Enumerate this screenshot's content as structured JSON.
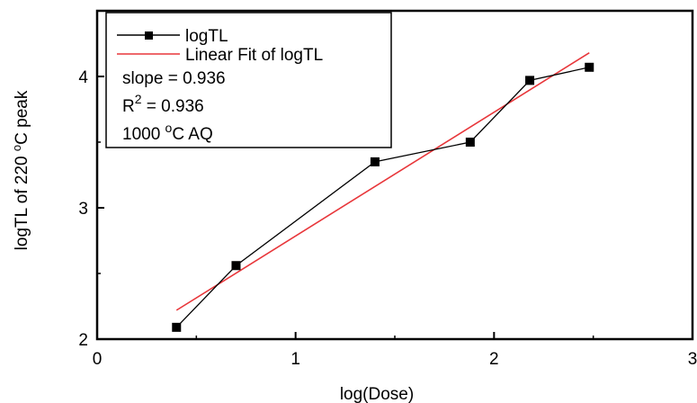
{
  "chart_data": {
    "type": "line",
    "xlabel": "log(Dose)",
    "ylabel_parts": [
      "logTL of 220 ",
      "o",
      "C peak"
    ],
    "xlim": [
      0,
      3
    ],
    "ylim": [
      2,
      4.5
    ],
    "x_ticks": [
      0,
      1,
      2,
      3
    ],
    "x_tick_labels": [
      "0",
      "1",
      "2",
      "3"
    ],
    "y_ticks": [
      2,
      3,
      4
    ],
    "y_tick_labels": [
      "2",
      "3",
      "4"
    ],
    "grid": false,
    "legend_position": "top-left",
    "series": [
      {
        "name": "logTL",
        "style": "line-with-square-markers",
        "color": "#000000",
        "x": [
          0.4,
          0.7,
          1.4,
          1.88,
          2.18,
          2.48
        ],
        "y": [
          2.09,
          2.56,
          3.35,
          3.5,
          3.97,
          4.07
        ]
      },
      {
        "name": "Linear Fit of logTL",
        "style": "line",
        "color": "#e8363a",
        "x": [
          0.4,
          2.48
        ],
        "y": [
          2.22,
          4.18
        ]
      }
    ],
    "annotations": {
      "slope": "slope = 0.936",
      "r2_prefix": "R",
      "r2_sup": "2",
      "r2_value": " = 0.936",
      "cond_value": "1000 ",
      "cond_sup": "o",
      "cond_suffix": "C AQ"
    }
  }
}
